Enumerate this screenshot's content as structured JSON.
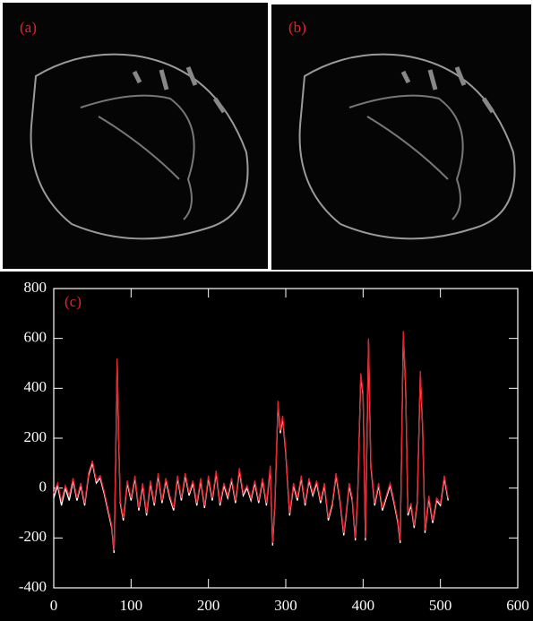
{
  "panels": {
    "a": {
      "label": "(a)"
    },
    "b": {
      "label": "(b)"
    }
  },
  "chart_data": {
    "type": "line",
    "label": "(c)",
    "x": [
      0,
      5,
      10,
      15,
      20,
      25,
      30,
      35,
      40,
      45,
      50,
      55,
      60,
      65,
      70,
      75,
      78,
      80,
      82,
      84,
      86,
      90,
      95,
      100,
      105,
      110,
      115,
      120,
      125,
      130,
      135,
      140,
      145,
      150,
      155,
      160,
      165,
      170,
      175,
      180,
      185,
      190,
      195,
      200,
      205,
      210,
      215,
      220,
      225,
      230,
      235,
      240,
      245,
      250,
      255,
      260,
      265,
      270,
      275,
      280,
      283,
      286,
      290,
      293,
      296,
      300,
      305,
      310,
      315,
      320,
      325,
      330,
      335,
      340,
      345,
      350,
      355,
      360,
      365,
      370,
      375,
      378,
      382,
      386,
      390,
      393,
      397,
      400,
      403,
      407,
      410,
      415,
      420,
      425,
      430,
      435,
      440,
      445,
      448,
      452,
      455,
      458,
      462,
      466,
      470,
      474,
      477,
      480,
      485,
      490,
      495,
      500,
      505,
      510
    ],
    "series": [
      {
        "color": "#ffffff",
        "values": [
          -40,
          10,
          -70,
          0,
          -50,
          30,
          -50,
          10,
          -70,
          50,
          100,
          20,
          40,
          -20,
          -90,
          -160,
          -260,
          90,
          510,
          190,
          -60,
          -130,
          20,
          -50,
          40,
          -90,
          10,
          -110,
          20,
          -70,
          50,
          -60,
          30,
          -40,
          -90,
          40,
          -50,
          50,
          -30,
          20,
          -70,
          30,
          -80,
          40,
          -50,
          60,
          -70,
          10,
          -40,
          30,
          -60,
          70,
          -30,
          0,
          -50,
          20,
          -60,
          30,
          -70,
          80,
          -230,
          -60,
          340,
          220,
          280,
          140,
          -110,
          10,
          -50,
          40,
          -70,
          30,
          -30,
          20,
          -60,
          10,
          -130,
          -70,
          50,
          -50,
          -190,
          -110,
          10,
          -50,
          -210,
          -30,
          450,
          370,
          -210,
          590,
          90,
          -70,
          10,
          -90,
          -40,
          10,
          -60,
          -140,
          -220,
          620,
          410,
          -110,
          -70,
          -160,
          -60,
          460,
          240,
          -180,
          -40,
          -140,
          -50,
          -70,
          40,
          -50
        ]
      },
      {
        "color": "#e8202a",
        "values": [
          -20,
          20,
          -50,
          10,
          -30,
          40,
          -40,
          20,
          -60,
          60,
          110,
          30,
          50,
          -10,
          -80,
          -150,
          -250,
          100,
          520,
          200,
          -50,
          -120,
          30,
          -40,
          50,
          -80,
          20,
          -100,
          30,
          -60,
          60,
          -50,
          40,
          -30,
          -80,
          50,
          -40,
          60,
          -20,
          30,
          -60,
          40,
          -70,
          50,
          -40,
          70,
          -60,
          20,
          -30,
          40,
          -50,
          80,
          -20,
          10,
          -40,
          30,
          -50,
          40,
          -60,
          90,
          -220,
          -50,
          350,
          230,
          290,
          150,
          -100,
          20,
          -40,
          50,
          -60,
          40,
          -20,
          30,
          -50,
          20,
          -120,
          -60,
          60,
          -40,
          -180,
          -100,
          20,
          -40,
          -200,
          -20,
          460,
          380,
          -200,
          600,
          100,
          -60,
          20,
          -80,
          -30,
          20,
          -50,
          -130,
          -210,
          630,
          420,
          -100,
          -60,
          -150,
          -50,
          470,
          250,
          -170,
          -30,
          -130,
          -40,
          -60,
          50,
          -40
        ]
      }
    ],
    "xlim": [
      0,
      600
    ],
    "xticks": [
      0,
      100,
      200,
      300,
      400,
      500,
      600
    ],
    "ylim": [
      -400,
      800
    ],
    "yticks": [
      -400,
      -200,
      0,
      200,
      400,
      600,
      800
    ]
  }
}
